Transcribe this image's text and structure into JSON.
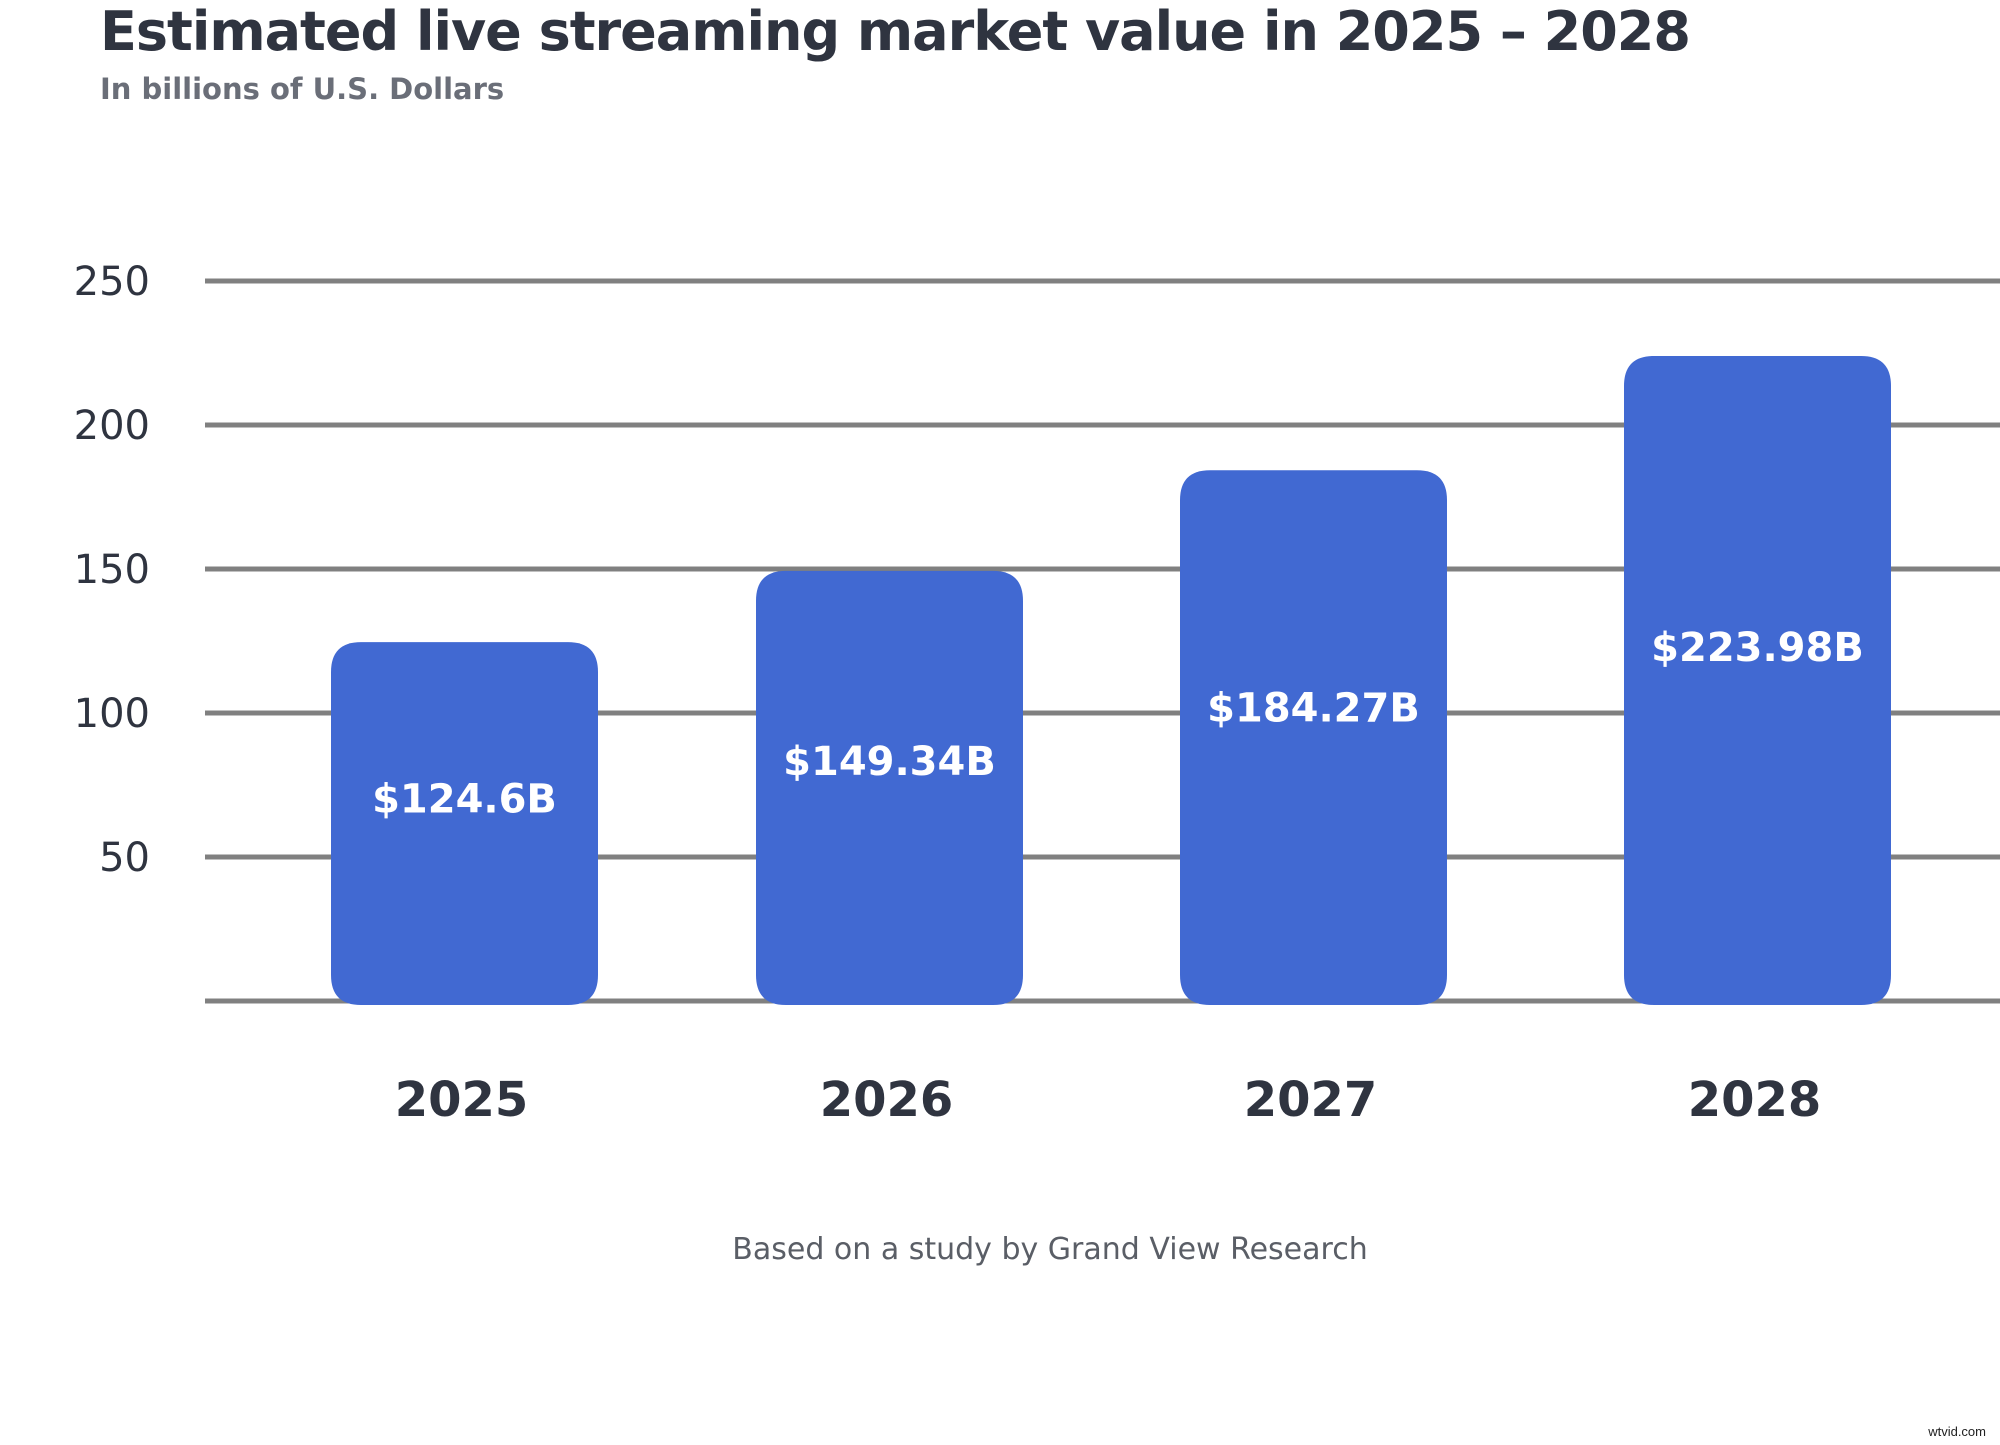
{
  "chart_data": {
    "type": "bar",
    "title": "Estimated live streaming market value in 2025 – 2028",
    "subtitle": "In billions of U.S. Dollars",
    "categories": [
      "2025",
      "2026",
      "2027",
      "2028"
    ],
    "values": [
      124.6,
      149.34,
      184.27,
      223.98
    ],
    "data_labels": [
      "$124.6B",
      "$149.34B",
      "$184.27B",
      "$223.98B"
    ],
    "yticks": [
      50,
      100,
      150,
      200,
      250
    ],
    "ylim": [
      0,
      250
    ],
    "grid": true,
    "bar_color": "#4169d2",
    "grid_color": "#808080",
    "source": "Based on a study by Grand View Research"
  },
  "watermark": "wtvid.com"
}
